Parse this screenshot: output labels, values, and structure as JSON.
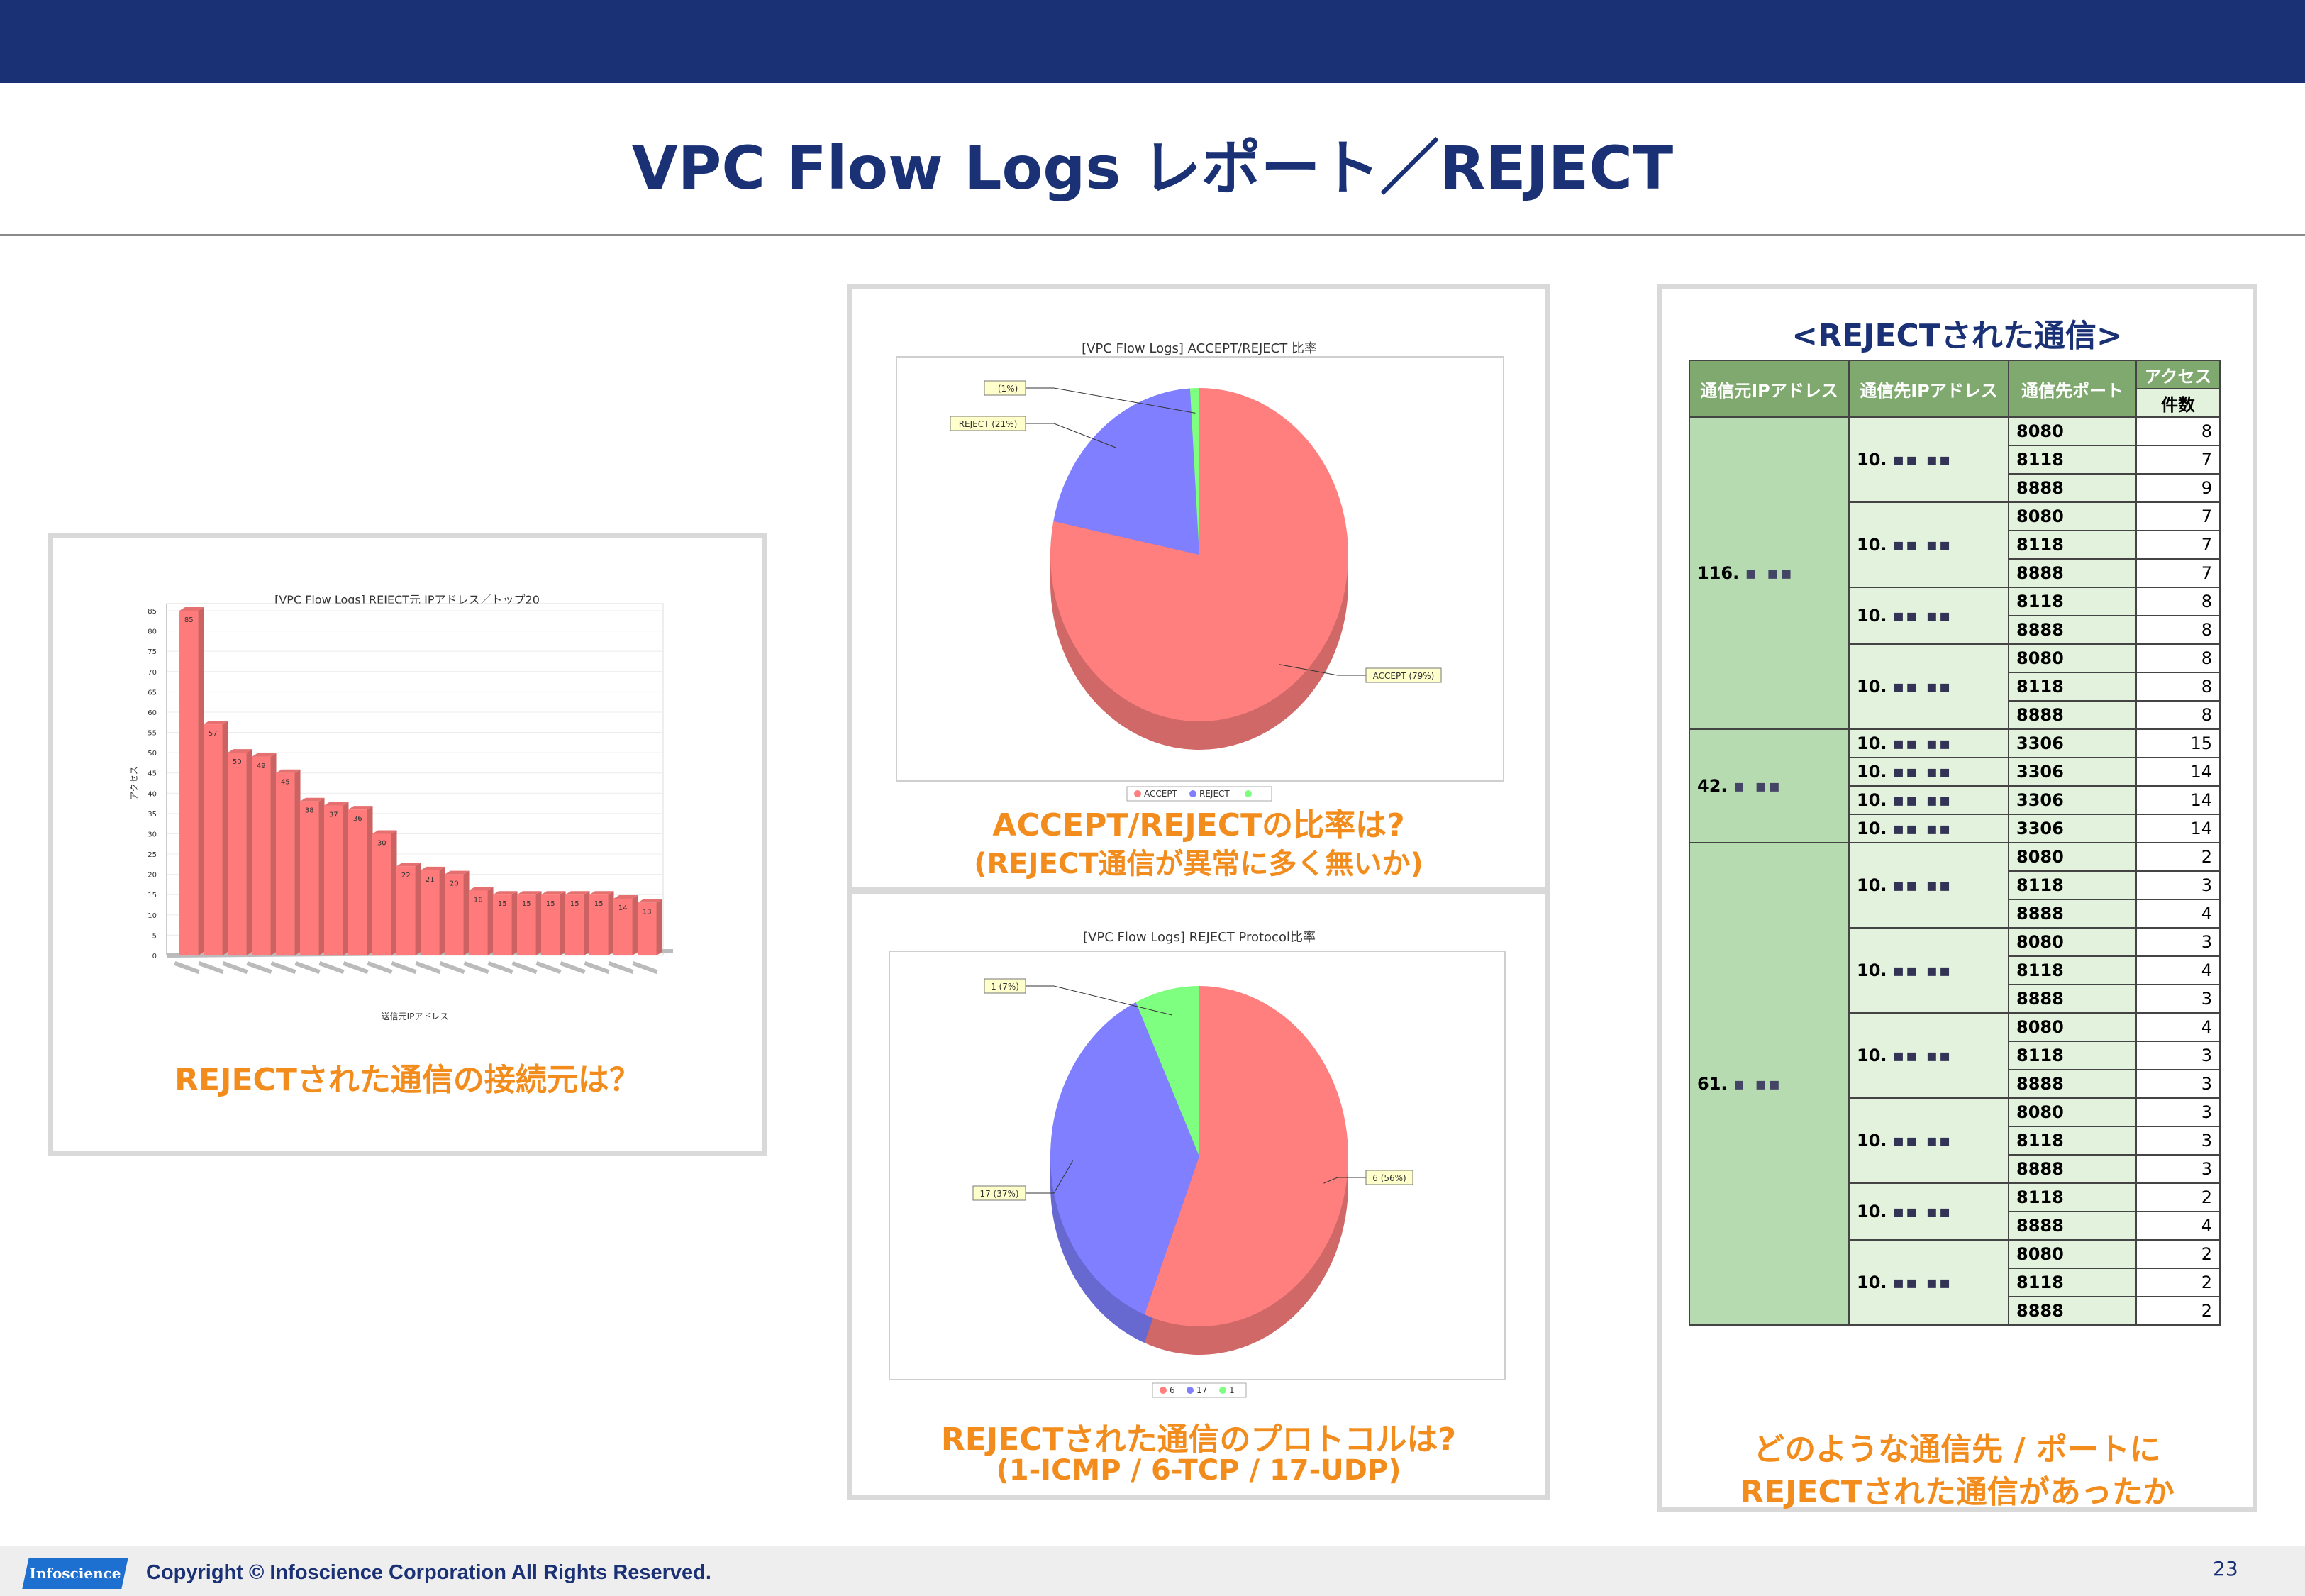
{
  "slide": {
    "title": "VPC Flow Logs レポート／REJECT",
    "page_number": "23",
    "copyright": "Copyright © Infoscience Corporation All Rights Reserved.",
    "logo_text": "Infoscience"
  },
  "panels": {
    "bar": {
      "caption": "REJECTされた通信の接続元は？"
    },
    "pie1": {
      "caption_line1": "ACCEPT/REJECTの比率は?",
      "caption_line2": "(REJECT通信が異常に多く無いか)"
    },
    "pie2": {
      "caption_line1": "REJECTされた通信のプロトコルは?",
      "caption_line2": "(1-ICMP / 6-TCP / 17-UDP)"
    },
    "table": {
      "heading": "<REJECTされた通信>",
      "caption_line1": "どのような通信先 / ポートに",
      "caption_line2": "REJECTされた通信があったか"
    }
  },
  "chart_data": [
    {
      "type": "bar",
      "title": "[VPC Flow Logs] REJECT元 IPアドレス／トップ20",
      "xlabel": "送信元IPアドレス",
      "ylabel": "アクセス",
      "ylim": [
        0,
        85
      ],
      "yticks": [
        0,
        5,
        10,
        15,
        20,
        25,
        30,
        35,
        40,
        45,
        50,
        55,
        60,
        65,
        70,
        75,
        80,
        85
      ],
      "values": [
        85,
        57,
        50,
        49,
        45,
        38,
        37,
        36,
        30,
        22,
        21,
        20,
        16,
        15,
        15,
        15,
        15,
        15,
        14,
        13
      ],
      "color": "#ff7b7b"
    },
    {
      "type": "pie",
      "title": "[VPC Flow Logs] ACCEPT/REJECT 比率",
      "slices": [
        {
          "label": "ACCEPT",
          "value": 79,
          "display": "ACCEPT (79%)",
          "color": "#ff7f7f"
        },
        {
          "label": "REJECT",
          "value": 21,
          "display": "REJECT (21%)",
          "color": "#7f7fff"
        },
        {
          "label": "-",
          "value": 1,
          "display": "- (1%)",
          "color": "#7fff7f"
        }
      ]
    },
    {
      "type": "pie",
      "title": "[VPC Flow Logs] REJECT Protocol比率",
      "slices": [
        {
          "label": "6",
          "value": 56,
          "display": "6 (56%)",
          "color": "#ff7f7f"
        },
        {
          "label": "17",
          "value": 37,
          "display": "17 (37%)",
          "color": "#7f7fff"
        },
        {
          "label": "1",
          "value": 7,
          "display": "1 (7%)",
          "color": "#7fff7f"
        }
      ]
    }
  ],
  "reject_table": {
    "headers": [
      "通信元IPアドレス",
      "通信先IPアドレス",
      "通信先ポート",
      "アクセス",
      "件数"
    ],
    "groups": [
      {
        "src": "116.",
        "dsts": [
          {
            "dst": "10.",
            "rows": [
              [
                "8080",
                "8"
              ],
              [
                "8118",
                "7"
              ],
              [
                "8888",
                "9"
              ]
            ]
          },
          {
            "dst": "10.",
            "rows": [
              [
                "8080",
                "7"
              ],
              [
                "8118",
                "7"
              ],
              [
                "8888",
                "7"
              ]
            ]
          },
          {
            "dst": "10.",
            "rows": [
              [
                "8118",
                "8"
              ],
              [
                "8888",
                "8"
              ]
            ]
          },
          {
            "dst": "10.",
            "rows": [
              [
                "8080",
                "8"
              ],
              [
                "8118",
                "8"
              ],
              [
                "8888",
                "8"
              ]
            ]
          }
        ]
      },
      {
        "src": "42.",
        "dsts": [
          {
            "dst": "10.",
            "rows": [
              [
                "3306",
                "15"
              ]
            ]
          },
          {
            "dst": "10.",
            "rows": [
              [
                "3306",
                "14"
              ]
            ]
          },
          {
            "dst": "10.",
            "rows": [
              [
                "3306",
                "14"
              ]
            ]
          },
          {
            "dst": "10.",
            "rows": [
              [
                "3306",
                "14"
              ]
            ]
          }
        ]
      },
      {
        "src": "61.",
        "dsts": [
          {
            "dst": "10.",
            "rows": [
              [
                "8080",
                "2"
              ],
              [
                "8118",
                "3"
              ],
              [
                "8888",
                "4"
              ]
            ]
          },
          {
            "dst": "10.",
            "rows": [
              [
                "8080",
                "3"
              ],
              [
                "8118",
                "4"
              ],
              [
                "8888",
                "3"
              ]
            ]
          },
          {
            "dst": "10.",
            "rows": [
              [
                "8080",
                "4"
              ],
              [
                "8118",
                "3"
              ],
              [
                "8888",
                "3"
              ]
            ]
          },
          {
            "dst": "10.",
            "rows": [
              [
                "8080",
                "3"
              ],
              [
                "8118",
                "3"
              ],
              [
                "8888",
                "3"
              ]
            ]
          },
          {
            "dst": "10.",
            "rows": [
              [
                "8118",
                "2"
              ],
              [
                "8888",
                "4"
              ]
            ]
          },
          {
            "dst": "10.",
            "rows": [
              [
                "8080",
                "2"
              ],
              [
                "8118",
                "2"
              ],
              [
                "8888",
                "2"
              ]
            ]
          }
        ]
      }
    ]
  }
}
